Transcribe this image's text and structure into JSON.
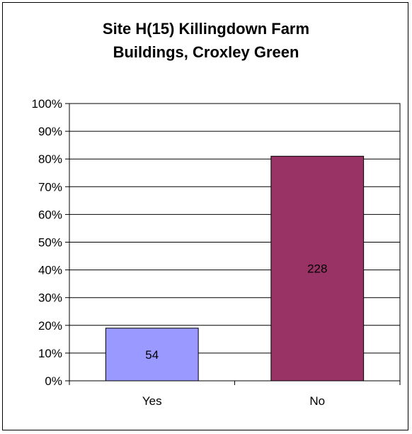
{
  "chart_data": {
    "type": "bar",
    "title_lines": [
      "Site H(15) Killingdown Farm",
      "Buildings, Croxley Green"
    ],
    "categories": [
      "Yes",
      "No"
    ],
    "values_percent": [
      19,
      81
    ],
    "data_labels": [
      "54",
      "228"
    ],
    "colors": [
      "#9999ff",
      "#993366"
    ],
    "ylim": [
      0,
      100
    ],
    "yticks": [
      "0%",
      "10%",
      "20%",
      "30%",
      "40%",
      "50%",
      "60%",
      "70%",
      "80%",
      "90%",
      "100%"
    ],
    "grid": "horizontal",
    "legend": "none"
  }
}
